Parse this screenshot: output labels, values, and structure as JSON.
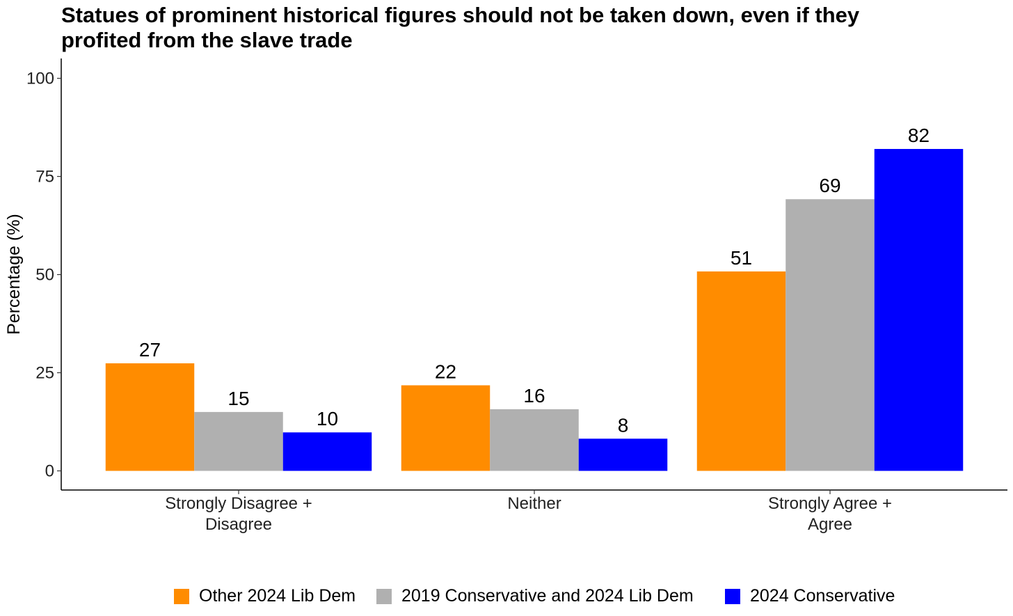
{
  "chart_data": {
    "type": "bar",
    "title": "Statues of prominent historical figures should not be taken down, even if they profited from the slave trade",
    "title_lines": [
      "Statues of prominent historical figures should not be taken down, even if they",
      "profited from the slave trade"
    ],
    "xlabel": "",
    "ylabel": "Percentage (%)",
    "ylim": [
      0,
      105
    ],
    "yticks": [
      0,
      25,
      50,
      75,
      100
    ],
    "grid": false,
    "legend_position": "bottom",
    "categories": [
      [
        "Strongly Disagree +",
        "Disagree"
      ],
      [
        "Neither"
      ],
      [
        "Strongly Agree +",
        "Agree"
      ]
    ],
    "series": [
      {
        "name": "Other 2024 Lib Dem",
        "color": "#FF8C00",
        "values": [
          27.4,
          21.8,
          50.8
        ],
        "labels": [
          "27",
          "22",
          "51"
        ]
      },
      {
        "name": "2019 Conservative and 2024 Lib Dem",
        "color": "#B0B0B0",
        "values": [
          15.0,
          15.7,
          69.2
        ],
        "labels": [
          "15",
          "16",
          "69"
        ]
      },
      {
        "name": "2024 Conservative",
        "color": "#0000FF",
        "values": [
          9.8,
          8.2,
          82.0
        ],
        "labels": [
          "10",
          "8",
          "82"
        ]
      }
    ]
  }
}
